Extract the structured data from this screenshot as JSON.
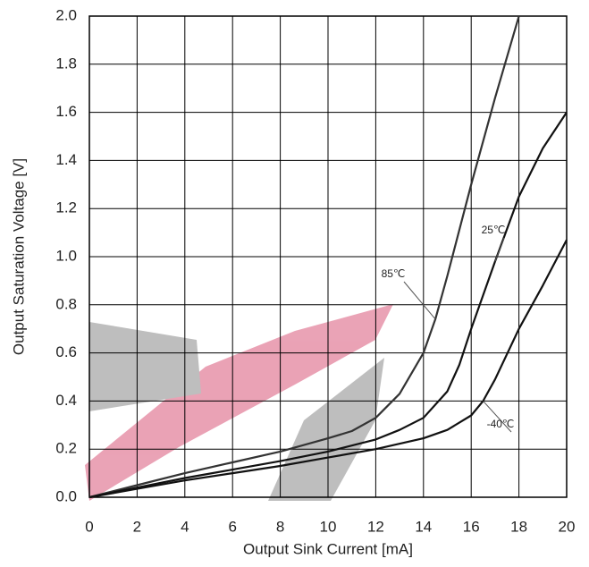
{
  "chart_data": {
    "type": "line",
    "x_label": "Output Sink Current [mA]",
    "y_label": "Output Saturation Voltage [V]",
    "xlim": [
      0,
      20
    ],
    "xticks": [
      0,
      2,
      4,
      6,
      8,
      10,
      12,
      14,
      16,
      18,
      20
    ],
    "ylim": [
      0,
      2
    ],
    "yticks": [
      {
        "value": 0,
        "label": "0.0"
      },
      0.2,
      0.4,
      0.6,
      0.8,
      {
        "value": 1,
        "label": "1.0"
      },
      1.2,
      1.4,
      1.6,
      1.8,
      {
        "value": 2,
        "label": "2.0"
      }
    ],
    "grid": true,
    "series": [
      {
        "name": "85℃",
        "color": "#333333",
        "x": [
          0,
          2,
          4,
          6,
          8,
          10,
          11,
          12,
          13,
          14,
          14.5,
          15,
          16,
          17,
          18
        ],
        "values": [
          0,
          0.05,
          0.1,
          0.145,
          0.19,
          0.245,
          0.275,
          0.33,
          0.43,
          0.6,
          0.74,
          0.92,
          1.3,
          1.66,
          2.0
        ]
      },
      {
        "name": "25℃",
        "color": "#111111",
        "x": [
          0,
          2,
          4,
          6,
          8,
          10,
          12,
          13,
          14,
          15,
          15.5,
          16,
          17,
          18,
          19,
          20
        ],
        "values": [
          0,
          0.04,
          0.08,
          0.115,
          0.15,
          0.19,
          0.24,
          0.28,
          0.33,
          0.44,
          0.55,
          0.7,
          0.98,
          1.25,
          1.45,
          1.6
        ]
      },
      {
        "name": "-40℃",
        "color": "#111111",
        "x": [
          0,
          2,
          4,
          6,
          8,
          10,
          12,
          14,
          15,
          16,
          16.5,
          17,
          18,
          19,
          20
        ],
        "values": [
          0,
          0.035,
          0.07,
          0.1,
          0.13,
          0.165,
          0.2,
          0.245,
          0.28,
          0.34,
          0.4,
          0.49,
          0.7,
          0.88,
          1.07
        ]
      }
    ]
  }
}
